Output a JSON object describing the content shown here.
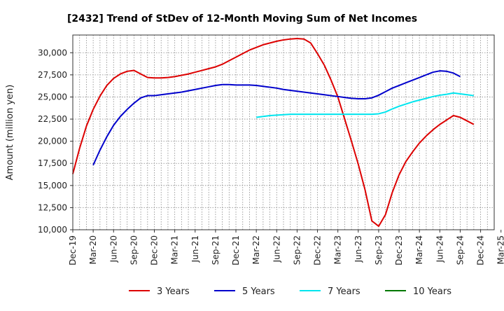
{
  "chart_data": {
    "type": "line",
    "title": "[2432]  Trend of StDev of 12-Month Moving Sum of Net Incomes",
    "xlabel": "",
    "ylabel": "Amount (million yen)",
    "ylim": [
      10000,
      32000
    ],
    "grid": true,
    "legend_position": "bottom",
    "x_tick_labels": [
      "Dec-19",
      "Mar-20",
      "Jun-20",
      "Sep-20",
      "Dec-20",
      "Mar-21",
      "Jun-21",
      "Sep-21",
      "Dec-21",
      "Mar-22",
      "Jun-22",
      "Sep-22",
      "Dec-22",
      "Mar-23",
      "Jun-23",
      "Sep-23",
      "Dec-23",
      "Mar-24",
      "Jun-24",
      "Sep-24",
      "Dec-24",
      "Mar-25"
    ],
    "y_ticks": [
      10000,
      12500,
      15000,
      17500,
      20000,
      22500,
      25000,
      27500,
      30000
    ],
    "y_tick_labels": [
      "10,000",
      "12,500",
      "15,000",
      "17,500",
      "20,000",
      "22,500",
      "25,000",
      "27,500",
      "30,000"
    ],
    "months": [
      "2019-12",
      "2020-01",
      "2020-02",
      "2020-03",
      "2020-04",
      "2020-05",
      "2020-06",
      "2020-07",
      "2020-08",
      "2020-09",
      "2020-10",
      "2020-11",
      "2020-12",
      "2021-01",
      "2021-02",
      "2021-03",
      "2021-04",
      "2021-05",
      "2021-06",
      "2021-07",
      "2021-08",
      "2021-09",
      "2021-10",
      "2021-11",
      "2021-12",
      "2022-01",
      "2022-02",
      "2022-03",
      "2022-04",
      "2022-05",
      "2022-06",
      "2022-07",
      "2022-08",
      "2022-09",
      "2022-10",
      "2022-11",
      "2022-12",
      "2023-01",
      "2023-02",
      "2023-03",
      "2023-04",
      "2023-05",
      "2023-06",
      "2023-07",
      "2023-08",
      "2023-09",
      "2023-10",
      "2023-11",
      "2023-12",
      "2024-01",
      "2024-02",
      "2024-03",
      "2024-04",
      "2024-05",
      "2024-06",
      "2024-07",
      "2024-08",
      "2024-09",
      "2024-10",
      "2024-11",
      "2024-12"
    ],
    "series": [
      {
        "name": "3 Years",
        "color": "#dd0000",
        "values": [
          16300,
          19200,
          21700,
          23600,
          25100,
          26300,
          27100,
          27600,
          27900,
          28000,
          27600,
          27200,
          27150,
          27150,
          27200,
          27300,
          27450,
          27600,
          27800,
          28000,
          28200,
          28400,
          28700,
          29100,
          29500,
          29900,
          30300,
          30600,
          30900,
          31100,
          31300,
          31450,
          31550,
          31600,
          31550,
          31100,
          29900,
          28600,
          26900,
          25000,
          22500,
          20000,
          17400,
          14500,
          11000,
          10400,
          11700,
          14200,
          16200,
          17700,
          18800,
          19800,
          20600,
          21300,
          21900,
          22400,
          22900,
          22700,
          22300,
          21900,
          null
        ]
      },
      {
        "name": "5 Years",
        "color": "#0000cc",
        "values": [
          null,
          null,
          null,
          17300,
          19000,
          20500,
          21800,
          22800,
          23600,
          24300,
          24900,
          25150,
          25150,
          25250,
          25350,
          25450,
          25550,
          25700,
          25850,
          26000,
          26150,
          26300,
          26400,
          26400,
          26350,
          26350,
          26350,
          26300,
          26200,
          26100,
          26000,
          25850,
          25750,
          25650,
          25550,
          25450,
          25350,
          25250,
          25150,
          25050,
          24950,
          24850,
          24800,
          24800,
          24900,
          25200,
          25600,
          26000,
          26300,
          26600,
          26900,
          27200,
          27500,
          27800,
          27950,
          27900,
          27700,
          27300,
          null,
          null,
          null
        ]
      },
      {
        "name": "7 Years",
        "color": "#00e5ee",
        "values": [
          null,
          null,
          null,
          null,
          null,
          null,
          null,
          null,
          null,
          null,
          null,
          null,
          null,
          null,
          null,
          null,
          null,
          null,
          null,
          null,
          null,
          null,
          null,
          null,
          null,
          null,
          null,
          22700,
          22800,
          22900,
          22950,
          23000,
          23050,
          23050,
          23050,
          23050,
          23050,
          23050,
          23050,
          23050,
          23050,
          23050,
          23050,
          23050,
          23050,
          23100,
          23300,
          23650,
          23950,
          24200,
          24450,
          24650,
          24850,
          25050,
          25200,
          25300,
          25450,
          25350,
          25250,
          25150,
          null
        ]
      },
      {
        "name": "10 Years",
        "color": "#007700",
        "values": []
      }
    ]
  }
}
